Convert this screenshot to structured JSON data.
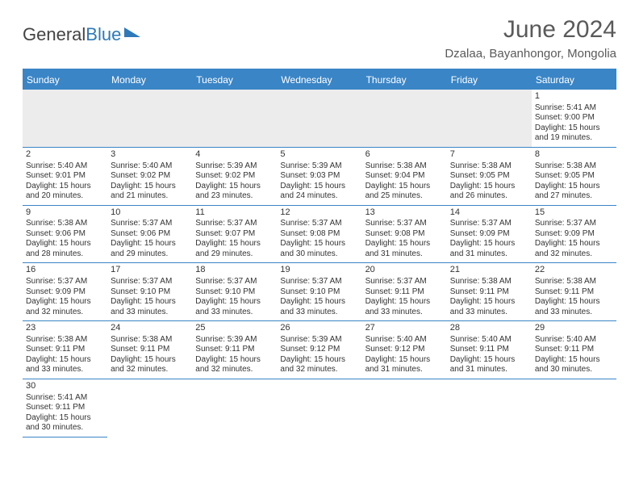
{
  "header": {
    "logo_text_1": "General",
    "logo_text_2": "Blue",
    "month": "June 2024",
    "location": "Dzalaa, Bayanhongor, Mongolia"
  },
  "style": {
    "header_bg": "#3a85c6",
    "header_text": "#ffffff",
    "cell_border": "#3a85c6",
    "blank_bg": "#ececec",
    "text_color": "#333333"
  },
  "weekdays": [
    "Sunday",
    "Monday",
    "Tuesday",
    "Wednesday",
    "Thursday",
    "Friday",
    "Saturday"
  ],
  "leading_blanks": 6,
  "days": [
    {
      "n": 1,
      "sunrise": "5:41 AM",
      "sunset": "9:00 PM",
      "day_h": 15,
      "day_m": 19
    },
    {
      "n": 2,
      "sunrise": "5:40 AM",
      "sunset": "9:01 PM",
      "day_h": 15,
      "day_m": 20
    },
    {
      "n": 3,
      "sunrise": "5:40 AM",
      "sunset": "9:02 PM",
      "day_h": 15,
      "day_m": 21
    },
    {
      "n": 4,
      "sunrise": "5:39 AM",
      "sunset": "9:02 PM",
      "day_h": 15,
      "day_m": 23
    },
    {
      "n": 5,
      "sunrise": "5:39 AM",
      "sunset": "9:03 PM",
      "day_h": 15,
      "day_m": 24
    },
    {
      "n": 6,
      "sunrise": "5:38 AM",
      "sunset": "9:04 PM",
      "day_h": 15,
      "day_m": 25
    },
    {
      "n": 7,
      "sunrise": "5:38 AM",
      "sunset": "9:05 PM",
      "day_h": 15,
      "day_m": 26
    },
    {
      "n": 8,
      "sunrise": "5:38 AM",
      "sunset": "9:05 PM",
      "day_h": 15,
      "day_m": 27
    },
    {
      "n": 9,
      "sunrise": "5:38 AM",
      "sunset": "9:06 PM",
      "day_h": 15,
      "day_m": 28
    },
    {
      "n": 10,
      "sunrise": "5:37 AM",
      "sunset": "9:06 PM",
      "day_h": 15,
      "day_m": 29
    },
    {
      "n": 11,
      "sunrise": "5:37 AM",
      "sunset": "9:07 PM",
      "day_h": 15,
      "day_m": 29
    },
    {
      "n": 12,
      "sunrise": "5:37 AM",
      "sunset": "9:08 PM",
      "day_h": 15,
      "day_m": 30
    },
    {
      "n": 13,
      "sunrise": "5:37 AM",
      "sunset": "9:08 PM",
      "day_h": 15,
      "day_m": 31
    },
    {
      "n": 14,
      "sunrise": "5:37 AM",
      "sunset": "9:09 PM",
      "day_h": 15,
      "day_m": 31
    },
    {
      "n": 15,
      "sunrise": "5:37 AM",
      "sunset": "9:09 PM",
      "day_h": 15,
      "day_m": 32
    },
    {
      "n": 16,
      "sunrise": "5:37 AM",
      "sunset": "9:09 PM",
      "day_h": 15,
      "day_m": 32
    },
    {
      "n": 17,
      "sunrise": "5:37 AM",
      "sunset": "9:10 PM",
      "day_h": 15,
      "day_m": 33
    },
    {
      "n": 18,
      "sunrise": "5:37 AM",
      "sunset": "9:10 PM",
      "day_h": 15,
      "day_m": 33
    },
    {
      "n": 19,
      "sunrise": "5:37 AM",
      "sunset": "9:10 PM",
      "day_h": 15,
      "day_m": 33
    },
    {
      "n": 20,
      "sunrise": "5:37 AM",
      "sunset": "9:11 PM",
      "day_h": 15,
      "day_m": 33
    },
    {
      "n": 21,
      "sunrise": "5:38 AM",
      "sunset": "9:11 PM",
      "day_h": 15,
      "day_m": 33
    },
    {
      "n": 22,
      "sunrise": "5:38 AM",
      "sunset": "9:11 PM",
      "day_h": 15,
      "day_m": 33
    },
    {
      "n": 23,
      "sunrise": "5:38 AM",
      "sunset": "9:11 PM",
      "day_h": 15,
      "day_m": 33
    },
    {
      "n": 24,
      "sunrise": "5:38 AM",
      "sunset": "9:11 PM",
      "day_h": 15,
      "day_m": 32
    },
    {
      "n": 25,
      "sunrise": "5:39 AM",
      "sunset": "9:11 PM",
      "day_h": 15,
      "day_m": 32
    },
    {
      "n": 26,
      "sunrise": "5:39 AM",
      "sunset": "9:12 PM",
      "day_h": 15,
      "day_m": 32
    },
    {
      "n": 27,
      "sunrise": "5:40 AM",
      "sunset": "9:12 PM",
      "day_h": 15,
      "day_m": 31
    },
    {
      "n": 28,
      "sunrise": "5:40 AM",
      "sunset": "9:11 PM",
      "day_h": 15,
      "day_m": 31
    },
    {
      "n": 29,
      "sunrise": "5:40 AM",
      "sunset": "9:11 PM",
      "day_h": 15,
      "day_m": 30
    },
    {
      "n": 30,
      "sunrise": "5:41 AM",
      "sunset": "9:11 PM",
      "day_h": 15,
      "day_m": 30
    }
  ],
  "labels": {
    "sunrise": "Sunrise: ",
    "sunset": "Sunset: ",
    "daylight": "Daylight: ",
    "hours": " hours",
    "and": "and ",
    "minutes": " minutes."
  }
}
